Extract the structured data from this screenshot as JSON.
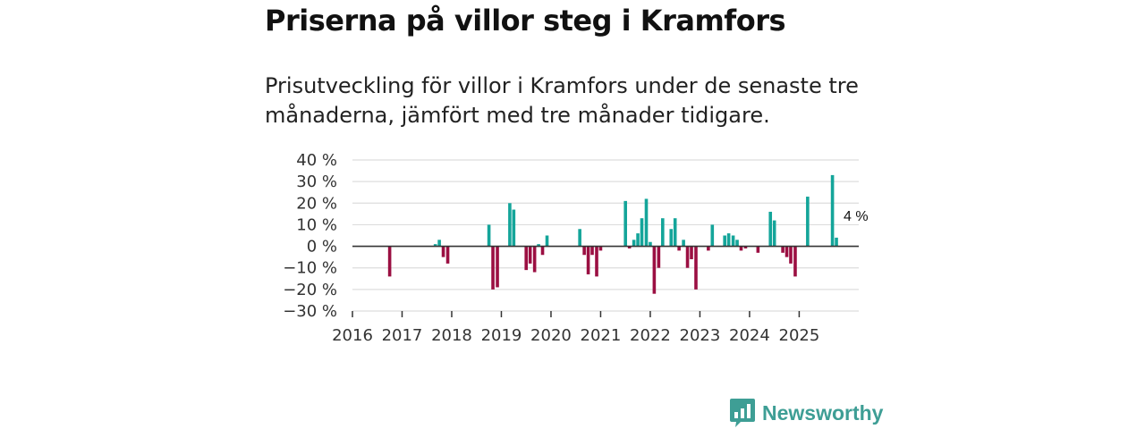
{
  "title": "Priserna på villor steg i Kramfors",
  "subtitle": "Prisutveckling för villor i Kramfors under de senaste tre månaderna, jämfört med tre månader tidigare.",
  "brand": {
    "name": "Newsworthy"
  },
  "colors": {
    "positive": "#14a59a",
    "negative": "#9b0f42",
    "grid": "#dddddd",
    "axis": "#333333",
    "brand": "#3e9e95"
  },
  "chart_data": {
    "type": "bar",
    "title": "Priserna på villor steg i Kramfors",
    "xlabel": "",
    "ylabel": "",
    "unit": "%",
    "ylim": [
      -30,
      40
    ],
    "yticks": [
      40,
      30,
      20,
      10,
      0,
      -10,
      -20,
      -30
    ],
    "ytick_labels": [
      "40 %",
      "30 %",
      "20 %",
      "10 %",
      "0 %",
      "−10 %",
      "−20 %",
      "−30 %"
    ],
    "xlim": [
      2016,
      2026.2
    ],
    "xticks": [
      2016,
      2017,
      2018,
      2019,
      2020,
      2021,
      2022,
      2023,
      2024,
      2025
    ],
    "xtick_labels": [
      "2016",
      "2017",
      "2018",
      "2019",
      "2020",
      "2021",
      "2022",
      "2023",
      "2024",
      "2025"
    ],
    "annotation": {
      "label": "4 %",
      "x": 2025.75,
      "value": 4
    },
    "x": [
      2016.75,
      2017.67,
      2017.75,
      2017.83,
      2017.92,
      2018.75,
      2018.83,
      2018.92,
      2019.17,
      2019.25,
      2019.5,
      2019.58,
      2019.67,
      2019.75,
      2019.83,
      2019.92,
      2020.58,
      2020.67,
      2020.75,
      2020.83,
      2020.92,
      2021.0,
      2021.5,
      2021.58,
      2021.67,
      2021.75,
      2021.83,
      2021.92,
      2022.0,
      2022.08,
      2022.17,
      2022.25,
      2022.42,
      2022.5,
      2022.58,
      2022.67,
      2022.75,
      2022.83,
      2022.92,
      2023.0,
      2023.17,
      2023.25,
      2023.5,
      2023.58,
      2023.67,
      2023.75,
      2023.83,
      2023.92,
      2024.17,
      2024.42,
      2024.5,
      2024.67,
      2024.75,
      2024.83,
      2024.92,
      2025.17,
      2025.67,
      2025.75
    ],
    "values": [
      -14,
      1,
      3,
      -5,
      -8,
      10,
      -20,
      -19,
      20,
      17,
      -11,
      -8,
      -12,
      1,
      -4,
      5,
      8,
      -4,
      -13,
      -4,
      -14,
      -2,
      21,
      -1,
      3,
      6,
      13,
      22,
      2,
      -22,
      -10,
      13,
      8,
      13,
      -2,
      3,
      -10,
      -6,
      -20,
      0,
      -2,
      10,
      5,
      6,
      5,
      3,
      -2,
      -1,
      -3,
      16,
      12,
      -3,
      -5,
      -8,
      -14,
      23,
      33,
      4
    ]
  }
}
